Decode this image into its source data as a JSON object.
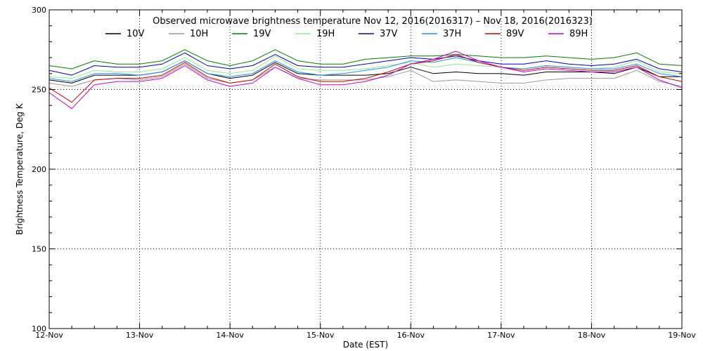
{
  "chart_data": {
    "type": "line",
    "title": "Observed microwave brightness temperature Nov 12, 2016(2016317) – Nov 18, 2016(2016323)",
    "xlabel": "Date (EST)",
    "ylabel": "Brightness Temperature, Deg K",
    "xlim": [
      0,
      7
    ],
    "ylim": [
      100,
      300
    ],
    "x_ticks": [
      {
        "x": 0,
        "label": "12-Nov"
      },
      {
        "x": 1,
        "label": "13-Nov"
      },
      {
        "x": 2,
        "label": "14-Nov"
      },
      {
        "x": 3,
        "label": "15-Nov"
      },
      {
        "x": 4,
        "label": "16-Nov"
      },
      {
        "x": 5,
        "label": "17-Nov"
      },
      {
        "x": 6,
        "label": "18-Nov"
      },
      {
        "x": 7,
        "label": "19-Nov"
      }
    ],
    "y_ticks": [
      {
        "y": 100,
        "label": "100"
      },
      {
        "y": 150,
        "label": "150"
      },
      {
        "y": 200,
        "label": "200"
      },
      {
        "y": 250,
        "label": "250"
      },
      {
        "y": 300,
        "label": "300"
      }
    ],
    "grid": true,
    "legend_position": "top",
    "x": [
      0,
      0.25,
      0.5,
      0.75,
      1,
      1.25,
      1.5,
      1.75,
      2,
      2.25,
      2.5,
      2.75,
      3,
      3.25,
      3.5,
      3.75,
      4,
      4.25,
      4.5,
      4.75,
      5,
      5.25,
      5.5,
      5.75,
      6,
      6.25,
      6.5,
      6.75,
      7
    ],
    "series": [
      {
        "name": "10V",
        "color": "#000000",
        "values": [
          256,
          254,
          259,
          259,
          259,
          261,
          268,
          260,
          257,
          259,
          267,
          260,
          259,
          259,
          259,
          260,
          264,
          260,
          261,
          260,
          260,
          259,
          261,
          261,
          261,
          260,
          264,
          258,
          258
        ]
      },
      {
        "name": "10H",
        "color": "#999999",
        "values": [
          254,
          252,
          256,
          257,
          256,
          258,
          266,
          257,
          254,
          256,
          264,
          257,
          256,
          256,
          256,
          258,
          262,
          255,
          256,
          255,
          254,
          254,
          256,
          257,
          257,
          257,
          262,
          255,
          252
        ]
      },
      {
        "name": "19V",
        "color": "#008000",
        "values": [
          265,
          263,
          268,
          266,
          266,
          268,
          275,
          268,
          265,
          268,
          275,
          268,
          266,
          266,
          269,
          270,
          271,
          271,
          272,
          271,
          270,
          270,
          271,
          270,
          269,
          270,
          273,
          266,
          265
        ]
      },
      {
        "name": "19H",
        "color": "#90ee90",
        "values": [
          258,
          257,
          262,
          261,
          261,
          263,
          270,
          262,
          260,
          262,
          271,
          263,
          262,
          262,
          263,
          265,
          267,
          264,
          266,
          265,
          264,
          263,
          265,
          264,
          263,
          264,
          268,
          261,
          260
        ]
      },
      {
        "name": "37V",
        "color": "#0000cc",
        "values": [
          262,
          259,
          265,
          264,
          264,
          266,
          273,
          265,
          263,
          265,
          272,
          265,
          264,
          264,
          266,
          268,
          270,
          269,
          271,
          268,
          266,
          266,
          268,
          266,
          265,
          266,
          269,
          263,
          261
        ]
      },
      {
        "name": "37H",
        "color": "#1e90ff",
        "values": [
          257,
          255,
          260,
          260,
          259,
          261,
          268,
          260,
          258,
          260,
          268,
          261,
          259,
          260,
          262,
          264,
          268,
          267,
          270,
          267,
          264,
          263,
          265,
          264,
          263,
          263,
          266,
          260,
          258
        ]
      },
      {
        "name": "89V",
        "color": "#cc0000",
        "values": [
          251,
          242,
          256,
          257,
          257,
          259,
          267,
          258,
          254,
          256,
          266,
          258,
          255,
          255,
          257,
          261,
          266,
          268,
          272,
          267,
          264,
          262,
          264,
          263,
          262,
          262,
          265,
          258,
          255
        ]
      },
      {
        "name": "89H",
        "color": "#cc00cc",
        "values": [
          248,
          238,
          253,
          255,
          255,
          257,
          265,
          256,
          252,
          254,
          264,
          257,
          253,
          253,
          255,
          259,
          266,
          269,
          274,
          268,
          264,
          261,
          263,
          262,
          261,
          261,
          264,
          256,
          251
        ]
      }
    ]
  }
}
